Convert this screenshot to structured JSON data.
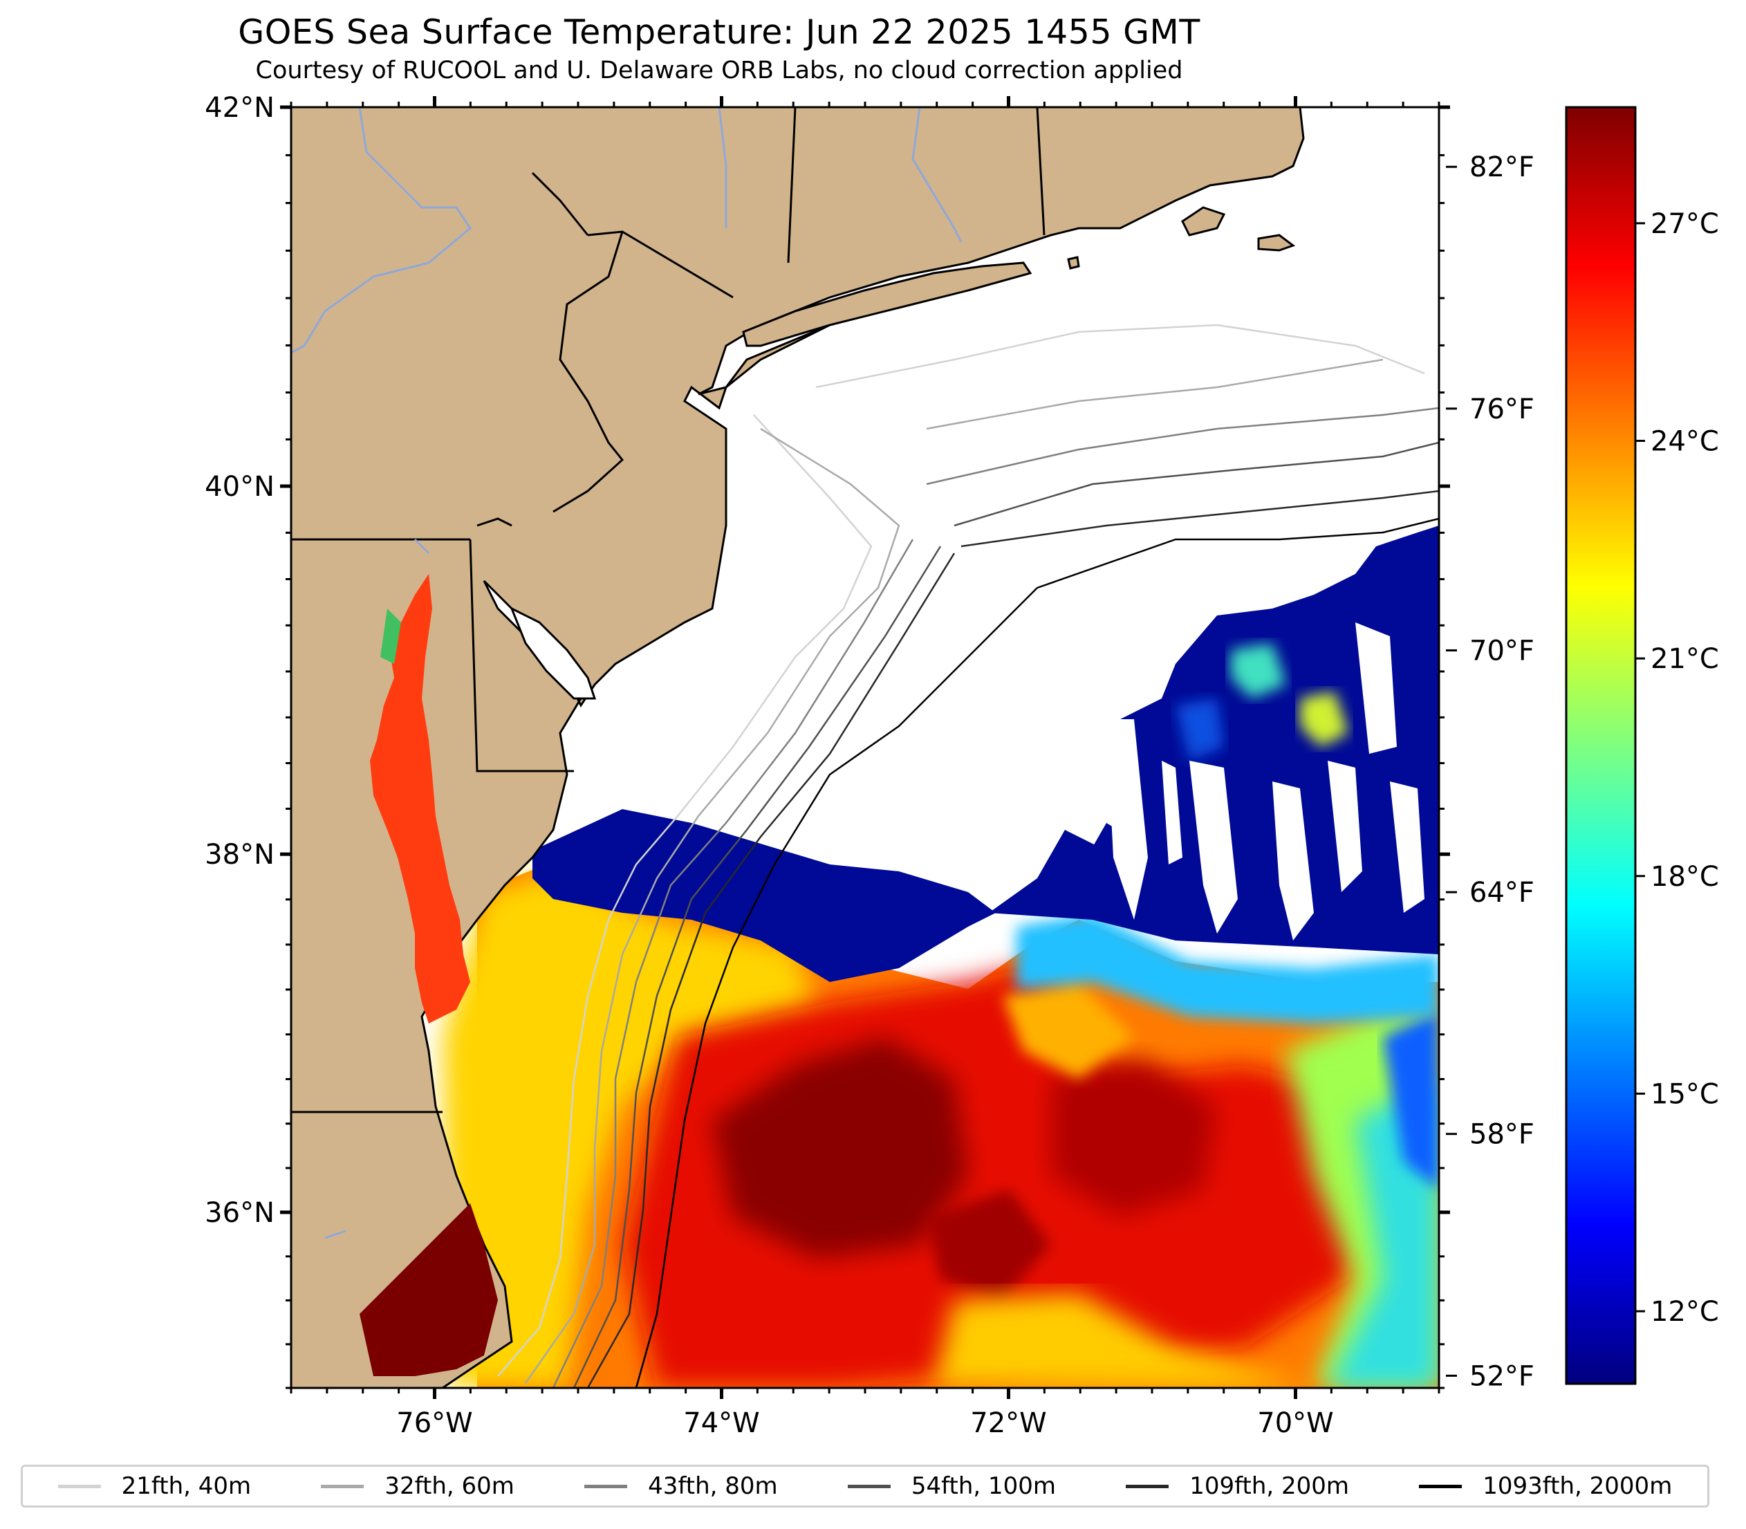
{
  "title": "GOES Sea Surface Temperature: Jun 22 2025 1455 GMT",
  "subtitle": "Courtesy of RUCOOL and U. Delaware ORB Labs, no cloud correction applied",
  "map": {
    "lon_range": [
      -77.0,
      -69.0
    ],
    "lat_range": [
      35.0,
      42.0
    ],
    "lat_labels": [
      {
        "lat": 42,
        "text": "42°N"
      },
      {
        "lat": 40,
        "text": "40°N"
      },
      {
        "lat": 38,
        "text": "38°N"
      },
      {
        "lat": 36,
        "text": "36°N"
      }
    ],
    "lon_labels": [
      {
        "lon": -76,
        "text": "76°W"
      },
      {
        "lon": -74,
        "text": "74°W"
      },
      {
        "lon": -72,
        "text": "72°W"
      },
      {
        "lon": -70,
        "text": "70°W"
      }
    ],
    "land_color": "#d2b48c",
    "ocean_nodata_color": "#ffffff"
  },
  "colorbar": {
    "min_c": 11,
    "max_c": 28.6,
    "celsius_ticks": [
      {
        "value": 12,
        "text": "12°C"
      },
      {
        "value": 15,
        "text": "15°C"
      },
      {
        "value": 18,
        "text": "18°C"
      },
      {
        "value": 21,
        "text": "21°C"
      },
      {
        "value": 24,
        "text": "24°C"
      },
      {
        "value": 27,
        "text": "27°C"
      }
    ],
    "fahrenheit_ticks": [
      {
        "value": 52,
        "text": "52°F"
      },
      {
        "value": 58,
        "text": "58°F"
      },
      {
        "value": 64,
        "text": "64°F"
      },
      {
        "value": 70,
        "text": "70°F"
      },
      {
        "value": 76,
        "text": "76°F"
      },
      {
        "value": 82,
        "text": "82°F"
      }
    ],
    "colormap": "jet",
    "colors": [
      "#00007f",
      "#0000ff",
      "#007fff",
      "#00ffff",
      "#7fff7f",
      "#ffff00",
      "#ff7f00",
      "#ff0000",
      "#7f0000"
    ]
  },
  "legend": [
    {
      "label": "21fth, 40m",
      "color": "#d3d3d3"
    },
    {
      "label": "32fth, 60m",
      "color": "#a9a9a9"
    },
    {
      "label": "43fth, 80m",
      "color": "#808080"
    },
    {
      "label": "54fth, 100m",
      "color": "#505050"
    },
    {
      "label": "109fth, 200m",
      "color": "#282828"
    },
    {
      "label": "1093fth, 2000m",
      "color": "#000000"
    }
  ]
}
